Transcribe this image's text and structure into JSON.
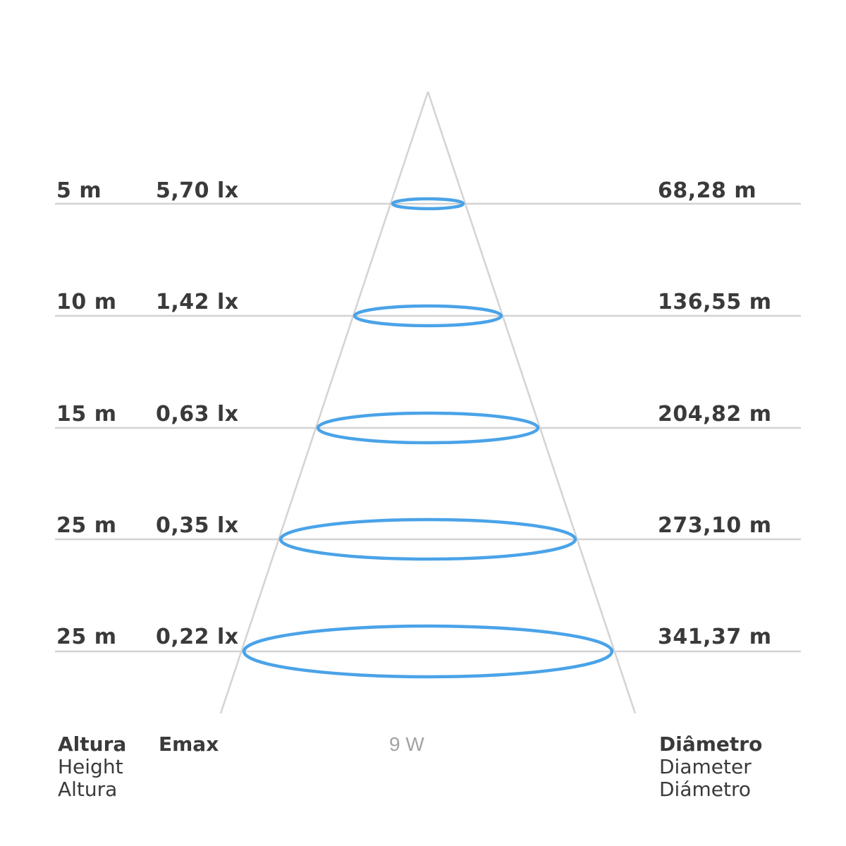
{
  "rows": [
    {
      "height": "5 m",
      "emax": "5,70 lx",
      "diameter": "68,28 m"
    },
    {
      "height": "10 m",
      "emax": "1,42 lx",
      "diameter": "136,55 m"
    },
    {
      "height": "15 m",
      "emax": "0,63 lx",
      "diameter": "204,82 m"
    },
    {
      "height": "25 m",
      "emax": "0,35 lx",
      "diameter": "273,10 m"
    },
    {
      "height": "25 m",
      "emax": "0,22 lx",
      "diameter": "341,37 m"
    }
  ],
  "footer": {
    "height": {
      "primary": "Altura",
      "en": "Height",
      "es": "Altura"
    },
    "emax": "Emax",
    "wattage": "9 W",
    "diameter": {
      "primary": "Diâmetro",
      "en": "Diameter",
      "es": "Diámetro"
    }
  },
  "colors": {
    "beam": "#4aa3e8",
    "lines": "#d3d3d5",
    "text": "#3a3a3c",
    "muted": "#a3a3a6"
  }
}
